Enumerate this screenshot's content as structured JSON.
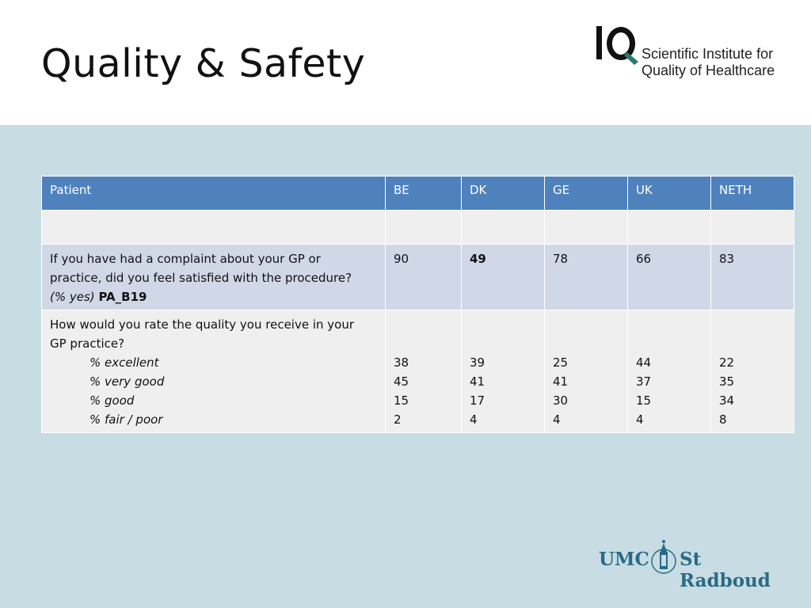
{
  "slide": {
    "title": "Quality & Safety"
  },
  "iq_logo": {
    "mark": "IQ",
    "line1": "Scientific Institute for",
    "line2": "Quality of Healthcare"
  },
  "table": {
    "headers": [
      "Patient",
      "BE",
      "DK",
      "GE",
      "UK",
      "NETH"
    ],
    "row1": {
      "question_line1": "If you have had a complaint about your GP or",
      "question_line2": "practice, did you feel satisfied with the procedure?",
      "unit": "(% yes)",
      "code": "PA_B19",
      "values": [
        "90",
        "49",
        "78",
        "66",
        "83"
      ]
    },
    "row2": {
      "question_line1": "How would you rate the quality you receive in your",
      "question_line2": "GP practice?",
      "options": [
        "% excellent",
        "% very good",
        "% good",
        "% fair / poor"
      ],
      "values": [
        [
          "38",
          "45",
          "15",
          "2"
        ],
        [
          "39",
          "41",
          "17",
          "4"
        ],
        [
          "25",
          "41",
          "30",
          "4"
        ],
        [
          "44",
          "37",
          "15",
          "4"
        ],
        [
          "22",
          "35",
          "34",
          "8"
        ]
      ]
    }
  },
  "umc_logo": {
    "left": "UMC",
    "right": "St Radboud"
  },
  "colors": {
    "header_blue": "#4f81bd",
    "row_blue": "#d0d8e8",
    "row_gray": "#efefef",
    "background": "#c8dde3",
    "logo_teal": "#2a6a86",
    "iq_green": "#2a7a72"
  }
}
